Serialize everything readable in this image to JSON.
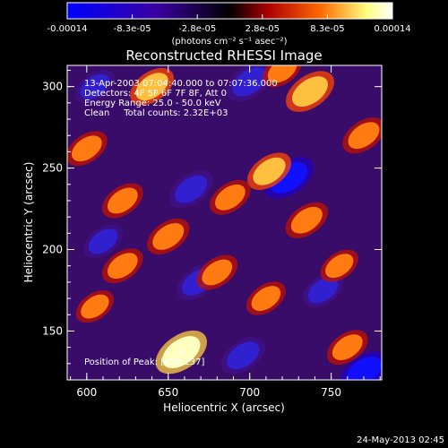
{
  "chart_data": {
    "type": "heatmap",
    "title": "Reconstructed RHESSI Image",
    "xlabel": "Heliocentric X (arcsec)",
    "ylabel": "Heliocentric Y (arcsec)",
    "xlim": [
      588,
      781
    ],
    "ylim": [
      120,
      313
    ],
    "x_ticks": [
      600,
      650,
      700,
      750
    ],
    "y_ticks": [
      150,
      200,
      250,
      300
    ],
    "colorbar": {
      "min": -0.00014,
      "max": 0.00014,
      "tick_labels": [
        "-0.00014",
        "-8.3e-05",
        "-2.8e-05",
        "2.8e-05",
        "8.3e-05",
        "0.00014"
      ],
      "unit_label": "(photons cm⁻² s⁻¹ asec⁻²)",
      "colors": [
        "#0000ff",
        "#3a00a0",
        "#000000",
        "#b00000",
        "#ff6a00",
        "#ffff80",
        "#ffffff"
      ]
    },
    "annotations": [
      "13-Apr-2003 07:04:40.000 to 07:07:36.000",
      "Detectors: 4F 5F 6F 7F 8F, Att 0",
      "Energy Range: 25.0 - 50.0 keV",
      "Clean     Total counts: 2.32E+03"
    ],
    "peak_label": "Position of Peak: [658,137]",
    "peak": [
      658,
      137
    ],
    "bright_sources": [
      {
        "x": 658,
        "y": 137,
        "value": 0.00014
      },
      {
        "x": 737,
        "y": 297,
        "value": 0.00012
      },
      {
        "x": 640,
        "y": 300,
        "value": 9e-05
      },
      {
        "x": 770,
        "y": 270,
        "value": 8e-05
      },
      {
        "x": 712,
        "y": 248,
        "value": 9e-05
      },
      {
        "x": 600,
        "y": 262,
        "value": 7e-05
      },
      {
        "x": 735,
        "y": 218,
        "value": 8e-05
      },
      {
        "x": 688,
        "y": 232,
        "value": 7e-05
      },
      {
        "x": 622,
        "y": 230,
        "value": 7e-05
      },
      {
        "x": 650,
        "y": 208,
        "value": 8e-05
      },
      {
        "x": 622,
        "y": 190,
        "value": 7e-05
      },
      {
        "x": 680,
        "y": 186,
        "value": 7e-05
      },
      {
        "x": 710,
        "y": 170,
        "value": 6e-05
      },
      {
        "x": 755,
        "y": 190,
        "value": 5e-05
      },
      {
        "x": 605,
        "y": 165,
        "value": 5e-05
      },
      {
        "x": 760,
        "y": 140,
        "value": 7e-05
      },
      {
        "x": 720,
        "y": 310,
        "value": 6e-05
      }
    ],
    "dark_sources": [
      {
        "x": 700,
        "y": 303,
        "value": -0.00011
      },
      {
        "x": 724,
        "y": 244,
        "value": -0.00013
      },
      {
        "x": 664,
        "y": 237,
        "value": -9e-05
      },
      {
        "x": 668,
        "y": 180,
        "value": -8e-05
      },
      {
        "x": 696,
        "y": 135,
        "value": -9e-05
      },
      {
        "x": 770,
        "y": 125,
        "value": -0.00012
      },
      {
        "x": 605,
        "y": 300,
        "value": -6e-05
      },
      {
        "x": 745,
        "y": 175,
        "value": -7e-05
      },
      {
        "x": 610,
        "y": 205,
        "value": -6e-05
      }
    ]
  },
  "footer": {
    "timestamp": "24-May-2013 02:45"
  }
}
